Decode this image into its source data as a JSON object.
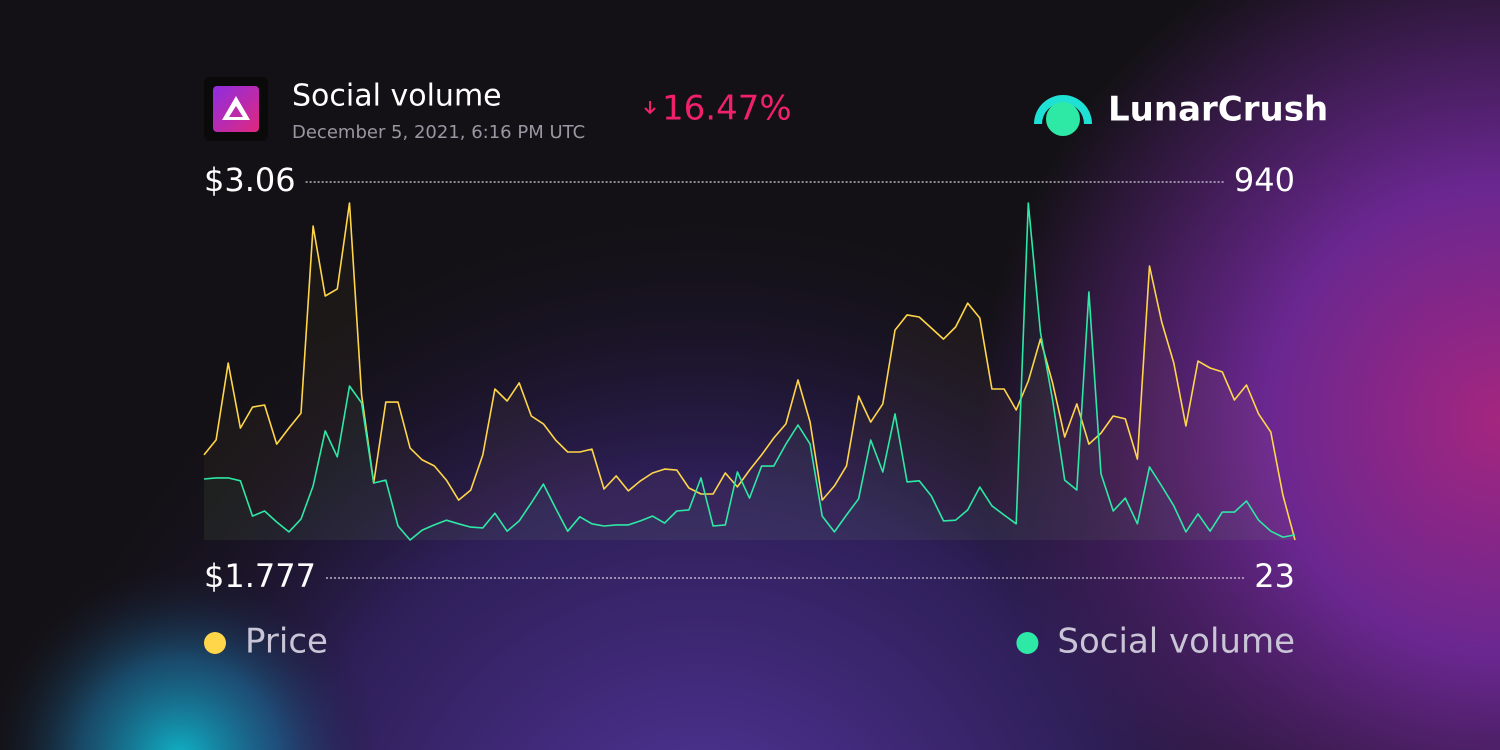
{
  "chart_data": {
    "type": "line",
    "title": "Social volume",
    "subtitle": "December 5, 2021, 6:16 PM UTC",
    "change": "16.47%",
    "brand": "LunarCrush",
    "ylim": [
      1.777,
      3.06
    ],
    "yticks": [
      {
        "value": 3.06,
        "label": "$3.06"
      },
      {
        "value": 1.777,
        "label": "$1.777"
      }
    ],
    "y2lim": [
      23,
      940
    ],
    "y2ticks": [
      940,
      23
    ],
    "series": [
      {
        "name": "Price",
        "color": "#ffd54a",
        "values": [
          2.101,
          2.158,
          2.451,
          2.203,
          2.283,
          2.291,
          2.142,
          2.203,
          2.26,
          2.972,
          2.706,
          2.733,
          3.06,
          2.329,
          1.994,
          2.302,
          2.302,
          2.127,
          2.082,
          2.059,
          2.005,
          1.929,
          1.967,
          2.101,
          2.352,
          2.306,
          2.375,
          2.249,
          2.219,
          2.158,
          2.112,
          2.112,
          2.123,
          1.971,
          2.021,
          1.964,
          2.002,
          2.032,
          2.047,
          2.043,
          1.975,
          1.952,
          1.952,
          2.032,
          1.979,
          2.043,
          2.101,
          2.165,
          2.219,
          2.386,
          2.226,
          1.929,
          1.983,
          2.059,
          2.325,
          2.226,
          2.295,
          2.576,
          2.634,
          2.626,
          2.584,
          2.542,
          2.588,
          2.679,
          2.622,
          2.352,
          2.352,
          2.272,
          2.382,
          2.542,
          2.375,
          2.169,
          2.295,
          2.142,
          2.184,
          2.249,
          2.238,
          2.085,
          2.82,
          2.607,
          2.451,
          2.211,
          2.458,
          2.432,
          2.417,
          2.31,
          2.367,
          2.257,
          2.188,
          1.948,
          1.777
        ]
      },
      {
        "name": "Social volume",
        "color": "#2ee8a5",
        "axis": "y2",
        "values": [
          189,
          192,
          192,
          184,
          88,
          102,
          72,
          45,
          80,
          170,
          320,
          249,
          442,
          396,
          178,
          186,
          61,
          23,
          50,
          64,
          77,
          67,
          58,
          56,
          96,
          47,
          75,
          124,
          175,
          110,
          47,
          86,
          67,
          61,
          64,
          64,
          75,
          88,
          69,
          102,
          105,
          192,
          61,
          64,
          208,
          137,
          224,
          224,
          284,
          336,
          284,
          88,
          45,
          91,
          135,
          295,
          208,
          366,
          181,
          184,
          143,
          75,
          77,
          105,
          167,
          116,
          91,
          67,
          940,
          589,
          404,
          186,
          159,
          698,
          203,
          102,
          137,
          67,
          222,
          170,
          116,
          45,
          94,
          47,
          99,
          99,
          129,
          77,
          47,
          31,
          37
        ]
      }
    ]
  }
}
